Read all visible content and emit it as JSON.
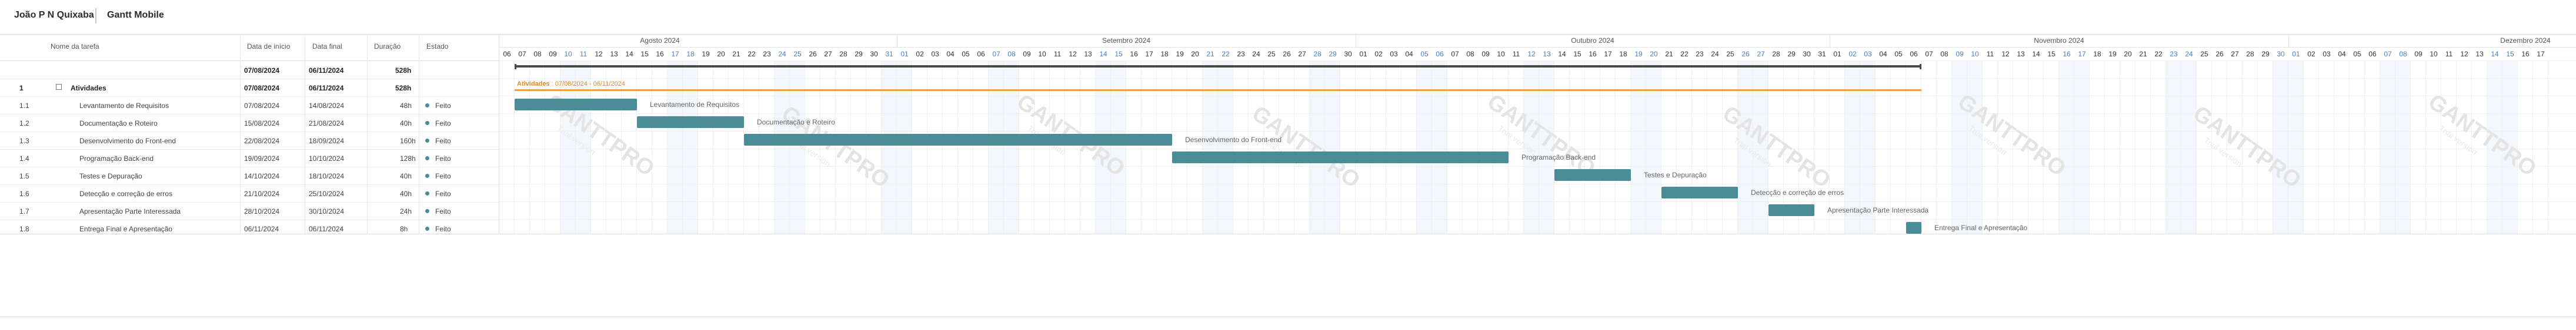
{
  "header": {
    "user": "João P N Quixaba",
    "project": "Gantt Mobile"
  },
  "columns": {
    "name": "Nome da tarefa",
    "start": "Data de início",
    "end": "Data final",
    "duration": "Duração",
    "status": "Estado"
  },
  "totals": {
    "start": "07/08/2024",
    "end": "06/11/2024",
    "duration": "528h"
  },
  "summary": {
    "id": "1",
    "name": "Atividades",
    "start": "07/08/2024",
    "end": "06/11/2024",
    "duration": "528h",
    "bar_label_name": "Atividades",
    "bar_label_dates": " : 07/08/2024 - 06/11/2024"
  },
  "tasks": [
    {
      "id": "1.1",
      "name": "Levantamento de Requisitos",
      "start": "07/08/2024",
      "end": "14/08/2024",
      "duration": "48h",
      "status": "Feito"
    },
    {
      "id": "1.2",
      "name": "Documentação e Roteiro",
      "start": "15/08/2024",
      "end": "21/08/2024",
      "duration": "40h",
      "status": "Feito"
    },
    {
      "id": "1.3",
      "name": "Desenvolvimento do Front-end",
      "start": "22/08/2024",
      "end": "18/09/2024",
      "duration": "160h",
      "status": "Feito"
    },
    {
      "id": "1.4",
      "name": "Programação Back-end",
      "start": "19/09/2024",
      "end": "10/10/2024",
      "duration": "128h",
      "status": "Feito"
    },
    {
      "id": "1.5",
      "name": "Testes e Depuração",
      "start": "14/10/2024",
      "end": "18/10/2024",
      "duration": "40h",
      "status": "Feito"
    },
    {
      "id": "1.6",
      "name": "Detecção e correção de erros",
      "start": "21/10/2024",
      "end": "25/10/2024",
      "duration": "40h",
      "status": "Feito"
    },
    {
      "id": "1.7",
      "name": "Apresentação Parte Interessada",
      "start": "28/10/2024",
      "end": "30/10/2024",
      "duration": "24h",
      "status": "Feito"
    },
    {
      "id": "1.8",
      "name": "Entrega Final e Apresentação",
      "start": "06/11/2024",
      "end": "06/11/2024",
      "duration": "8h",
      "status": "Feito"
    }
  ],
  "timeline": {
    "months": [
      "Agosto 2024",
      "Setembro 2024",
      "Outubro 2024",
      "Novembro 2024",
      "Dezembro 2024"
    ],
    "first_day": "2024-08-06",
    "last_day": "2024-12-17"
  },
  "watermark": {
    "brand": "GANTTPRO",
    "sub": "Trial version"
  },
  "colors": {
    "bar": "#4a8d96",
    "summary_bar": "#4a4a4a",
    "summary_line": "#f0a040",
    "weekend_text": "#4a7fc1",
    "status_done": "#4a8d96"
  }
}
